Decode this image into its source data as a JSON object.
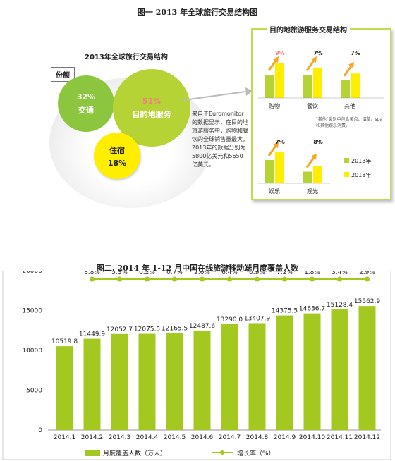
{
  "figure1": {
    "title": "图一  2013 年全球旅行交易结构图",
    "left_chart": {
      "title": "2013年全球旅行交易结构",
      "share_badge": "份额",
      "segments": [
        {
          "name": "交通",
          "value_label": "32%",
          "value": 32,
          "color": "#8cc63f"
        },
        {
          "name": "目的地服务",
          "value_label": "51%",
          "value": 51,
          "color": "#b5d334"
        },
        {
          "name": "住宿",
          "value_label": "18%",
          "value": 18,
          "color": "#ffee00"
        }
      ],
      "note": "来自于Euromonitor的数据显示，在目的地旅游服务中，购物和餐饮的全球销售量最大，2013年的数据分别为5800亿美元和5650亿美元。"
    },
    "right_chart": {
      "title": "目的地旅游服务交易结构",
      "legend": [
        "2013年",
        "2018年"
      ],
      "colors": {
        "y2013": "#b5d334",
        "y2018": "#ffee00"
      },
      "groups": [
        {
          "name": "购物",
          "growth_label": "9%",
          "growth_color": "#f08080",
          "v2013": 0.55,
          "v2018": 0.82
        },
        {
          "name": "餐饮",
          "growth_label": "7%",
          "growth_color": "#222222",
          "v2013": 0.55,
          "v2018": 0.72
        },
        {
          "name": "其他",
          "growth_label": "7%",
          "growth_color": "#222222",
          "v2013": 0.42,
          "v2018": 0.58
        },
        {
          "name": "娱乐",
          "growth_label": "7%",
          "growth_color": "#222222",
          "v2013": 0.6,
          "v2018": 0.82
        },
        {
          "name": "观光",
          "growth_label": "8%",
          "growth_color": "#222222",
          "v2013": 0.3,
          "v2018": 0.45
        }
      ],
      "footnote": "\"其他\"类别中包含美点、烟草、spa和其他娱乐消费。"
    }
  },
  "chart_data": {
    "type": "bar",
    "title": "图二.  2014 年 1-12 月中国在线旅游移动端月度覆盖人数",
    "categories": [
      "2014.1",
      "2014.2",
      "2014.3",
      "2014.4",
      "2014.5",
      "2014.6",
      "2014.7",
      "2014.8",
      "2014.9",
      "2014.10",
      "2014.11",
      "2014.12"
    ],
    "series": [
      {
        "name": "月度覆盖人数（万人）",
        "type": "bar",
        "color": "#a3c921",
        "values": [
          10519.8,
          11449.9,
          12052.7,
          12075.5,
          12165.5,
          12487.6,
          13290.0,
          13407.9,
          14375.5,
          14636.7,
          15128.4,
          15562.9
        ],
        "labels": [
          "10519.8",
          "11449.9",
          "12052.7",
          "12075.5",
          "12165.5",
          "12487.6",
          "13290.0",
          "13407.9",
          "14375.5",
          "14636.7",
          "15128.4",
          "15562.9"
        ]
      },
      {
        "name": "增长率（%）",
        "type": "line",
        "color": "#a3c921",
        "values": [
          null,
          8.8,
          5.3,
          0.2,
          0.7,
          2.6,
          6.4,
          0.9,
          7.2,
          1.8,
          3.4,
          2.9
        ],
        "labels": [
          "",
          "8.8%",
          "5.3%",
          "0.2%",
          "0.7%",
          "2.6%",
          "6.4%",
          "0.9%",
          "7.2%",
          "1.8%",
          "3.4%",
          "2.9%"
        ]
      }
    ],
    "yticks": [
      "0",
      "5000",
      "10000",
      "15000",
      "20000"
    ],
    "ylim": [
      0,
      20000
    ],
    "grid": false,
    "legend_position": "bottom"
  }
}
